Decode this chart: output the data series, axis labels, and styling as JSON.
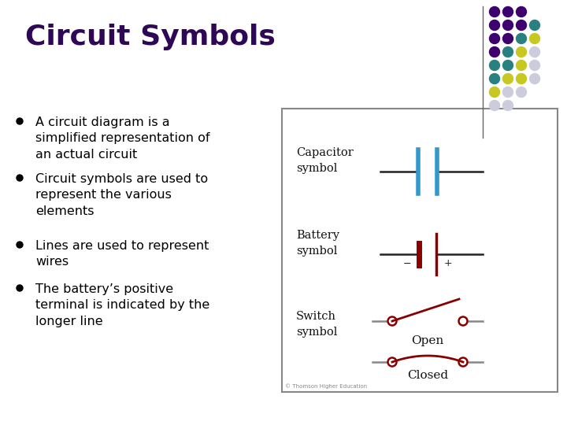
{
  "title": "Circuit Symbols",
  "title_color": "#2e0854",
  "title_fontsize": 26,
  "bg_color": "#ffffff",
  "bullet_points": [
    "A circuit diagram is a\nsimplified representation of\nan actual circuit",
    "Circuit symbols are used to\nrepresent the various\nelements",
    "Lines are used to represent\nwires",
    "The battery’s positive\nterminal is indicated by the\nlonger line"
  ],
  "bullet_color": "#000000",
  "bullet_fontsize": 11.5,
  "dot_colors_rows": [
    [
      "#3d006e",
      "#3d006e",
      "#3d006e"
    ],
    [
      "#3d006e",
      "#3d006e",
      "#3d006e",
      "#2a8080"
    ],
    [
      "#3d006e",
      "#3d006e",
      "#2a8080",
      "#c8c822"
    ],
    [
      "#3d006e",
      "#2a8080",
      "#c8c822",
      "#ccccdd"
    ],
    [
      "#2a8080",
      "#2a8080",
      "#c8c822",
      "#ccccdd"
    ],
    [
      "#2a8080",
      "#c8c822",
      "#c8c822",
      "#ccccdd"
    ],
    [
      "#c8c822",
      "#ccccdd",
      "#ccccdd"
    ],
    [
      "#ccccdd",
      "#ccccdd"
    ]
  ],
  "cap_color": "#3399cc",
  "bat_color": "#880000",
  "sw_color": "#880000",
  "wire_color": "#222222",
  "box_bg": "#ffffff",
  "box_border": "#888888",
  "copyright_text": "© Thomson Higher Education"
}
